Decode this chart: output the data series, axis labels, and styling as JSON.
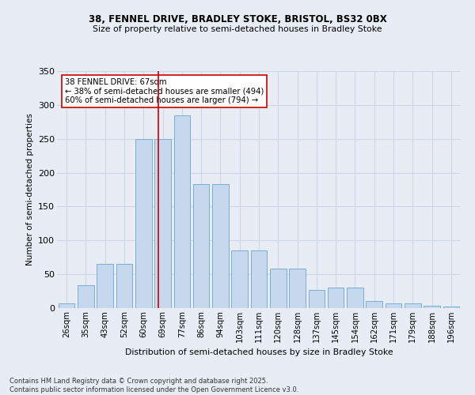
{
  "title1": "38, FENNEL DRIVE, BRADLEY STOKE, BRISTOL, BS32 0BX",
  "title2": "Size of property relative to semi-detached houses in Bradley Stoke",
  "xlabel": "Distribution of semi-detached houses by size in Bradley Stoke",
  "ylabel": "Number of semi-detached properties",
  "categories": [
    "26sqm",
    "35sqm",
    "43sqm",
    "52sqm",
    "60sqm",
    "69sqm",
    "77sqm",
    "86sqm",
    "94sqm",
    "103sqm",
    "111sqm",
    "120sqm",
    "128sqm",
    "137sqm",
    "145sqm",
    "154sqm",
    "162sqm",
    "171sqm",
    "179sqm",
    "188sqm",
    "196sqm"
  ],
  "bar_heights": [
    7,
    34,
    65,
    65,
    250,
    250,
    285,
    183,
    183,
    85,
    85,
    58,
    58,
    27,
    30,
    30,
    11,
    7,
    7,
    4,
    2
  ],
  "bar_color": "#c5d8ee",
  "bar_edge_color": "#7aaed4",
  "grid_color": "#cdd6e8",
  "bg_color": "#e8edf5",
  "vline_x_pos": 4,
  "vline_color": "#cc0000",
  "annotation_text": "38 FENNEL DRIVE: 67sqm\n← 38% of semi-detached houses are smaller (494)\n60% of semi-detached houses are larger (794) →",
  "annotation_box_color": "white",
  "annotation_box_edge": "#cc0000",
  "footer1": "Contains HM Land Registry data © Crown copyright and database right 2025.",
  "footer2": "Contains public sector information licensed under the Open Government Licence v3.0.",
  "ylim_max": 350,
  "yticks": [
    0,
    50,
    100,
    150,
    200,
    250,
    300,
    350
  ]
}
